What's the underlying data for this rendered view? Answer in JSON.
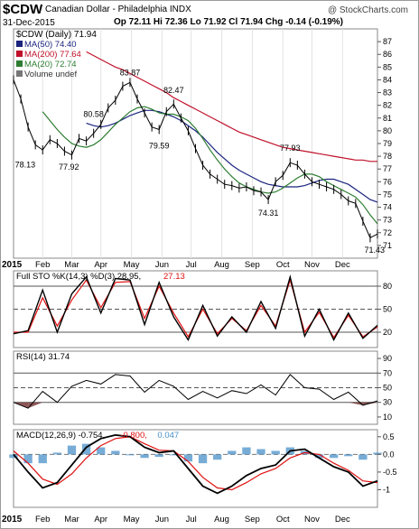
{
  "header": {
    "symbol": "$CDW",
    "name": "Canadian Dollar - Philadelphia INDX",
    "copyright": "@ StockCharts.com",
    "date": "31-Dec-2015",
    "quote": "Op 72.11 Hi 72.36 Lo 71.92 Cl 71.94 Chg -0.14 (-0.19%)",
    "chg_color": "#e00000"
  },
  "colors": {
    "price": "#000000",
    "ma50": "#1a237e",
    "ma200": "#c0102a",
    "ma20": "#2e7d32",
    "stoch_k": "#000000",
    "stoch_d": "#e01010",
    "rsi_fill": "#7a3b3b",
    "macd_hist": "#4a90c8",
    "macd_line": "#000000",
    "macd_signal": "#e01010"
  },
  "chart_data": [
    {
      "type": "line",
      "panel": "price",
      "legend": [
        {
          "label": "$CDW (Daily) 71.94",
          "color": "#000000"
        },
        {
          "label": "MA(50) 74.40",
          "color": "#1a237e"
        },
        {
          "label": "MA(200) 77.64",
          "color": "#c0102a"
        },
        {
          "label": "MA(20) 72.74",
          "color": "#2e7d32"
        },
        {
          "label": "Volume undef",
          "color": "#777777"
        }
      ],
      "ylim": [
        70,
        88
      ],
      "y_ticks": [
        71,
        72,
        73,
        74,
        75,
        76,
        77,
        78,
        79,
        80,
        81,
        82,
        83,
        84,
        85,
        86,
        87
      ],
      "x": [
        0,
        5,
        10,
        15,
        20,
        25,
        30,
        35,
        40,
        45,
        50,
        55,
        60,
        65,
        70,
        75,
        80,
        85,
        90,
        95,
        100,
        105,
        110,
        115,
        120,
        125,
        130,
        135,
        140,
        145,
        150,
        155,
        160,
        165,
        170,
        175,
        180,
        185,
        190,
        195,
        200,
        205,
        210,
        215,
        220,
        225,
        230,
        235,
        240,
        245,
        250
      ],
      "series": [
        {
          "name": "$CDW",
          "values": [
            84.0,
            82.5,
            80.3,
            78.9,
            78.5,
            79.3,
            79.0,
            78.4,
            78.1,
            79.4,
            79.2,
            79.8,
            80.5,
            81.8,
            82.4,
            83.5,
            83.8,
            82.5,
            81.4,
            80.3,
            80.1,
            81.5,
            82.1,
            81.0,
            80.0,
            78.6,
            77.3,
            76.6,
            76.2,
            75.8,
            75.7,
            75.5,
            75.6,
            75.3,
            75.2,
            74.6,
            76.0,
            76.5,
            77.5,
            77.3,
            76.6,
            76.0,
            75.8,
            75.6,
            75.4,
            75.0,
            74.5,
            74.3,
            72.9,
            71.6,
            71.9
          ]
        },
        {
          "name": "MA(50)",
          "values": [
            null,
            null,
            null,
            null,
            null,
            null,
            null,
            null,
            null,
            null,
            80.6,
            80.4,
            80.3,
            80.4,
            80.6,
            80.9,
            81.2,
            81.4,
            81.6,
            81.6,
            81.5,
            81.3,
            81.1,
            80.8,
            80.4,
            80.0,
            79.5,
            78.9,
            78.3,
            77.8,
            77.3,
            76.9,
            76.6,
            76.3,
            76.0,
            75.8,
            75.7,
            75.6,
            75.6,
            75.6,
            75.7,
            75.9,
            76.1,
            76.2,
            76.2,
            76.0,
            75.8,
            75.4,
            75.0,
            74.6,
            74.4
          ]
        },
        {
          "name": "MA(200)",
          "values": [
            null,
            null,
            null,
            null,
            null,
            null,
            null,
            null,
            null,
            null,
            86.2,
            85.9,
            85.6,
            85.3,
            85.0,
            84.8,
            84.5,
            84.2,
            83.9,
            83.6,
            83.3,
            83.0,
            82.6,
            82.3,
            82.0,
            81.7,
            81.4,
            81.1,
            80.8,
            80.5,
            80.2,
            79.9,
            79.7,
            79.5,
            79.3,
            79.1,
            78.9,
            78.7,
            78.6,
            78.5,
            78.4,
            78.3,
            78.2,
            78.1,
            78.0,
            77.9,
            77.8,
            77.7,
            77.7,
            77.6,
            77.6
          ]
        },
        {
          "name": "MA(20)",
          "values": [
            null,
            null,
            null,
            null,
            81.5,
            80.8,
            80.1,
            79.5,
            79.0,
            78.8,
            78.7,
            78.9,
            79.3,
            79.9,
            80.5,
            81.0,
            81.5,
            81.8,
            81.9,
            81.7,
            81.4,
            81.3,
            81.3,
            81.1,
            80.8,
            80.2,
            79.4,
            78.5,
            77.7,
            77.0,
            76.4,
            75.9,
            75.6,
            75.4,
            75.2,
            75.1,
            75.2,
            75.5,
            75.9,
            76.3,
            76.6,
            76.6,
            76.4,
            76.0,
            75.7,
            75.4,
            75.1,
            74.8,
            74.2,
            73.4,
            72.7
          ]
        }
      ],
      "annotations": [
        {
          "label": "78.13",
          "x": 8,
          "y": 78.13
        },
        {
          "label": "77.92",
          "x": 38,
          "y": 77.92
        },
        {
          "label": "80.58",
          "x": 55,
          "y": 80.58
        },
        {
          "label": "83.87",
          "x": 80,
          "y": 83.87
        },
        {
          "label": "79.59",
          "x": 100,
          "y": 79.59
        },
        {
          "label": "82.47",
          "x": 110,
          "y": 82.47
        },
        {
          "label": "77.93",
          "x": 190,
          "y": 77.93
        },
        {
          "label": "74.31",
          "x": 175,
          "y": 74.31
        },
        {
          "label": "71.43",
          "x": 248,
          "y": 71.43
        }
      ]
    },
    {
      "type": "line",
      "panel": "stochastic",
      "legend": [
        {
          "label": "Full STO %K(14,3) %D(3) 28.95,",
          "color": "#000000"
        },
        {
          "label": "27.13",
          "color": "#e01010"
        }
      ],
      "ylim": [
        0,
        100
      ],
      "y_ticks": [
        20,
        50,
        80
      ],
      "x": [
        0,
        10,
        20,
        30,
        40,
        50,
        60,
        70,
        80,
        90,
        100,
        110,
        120,
        130,
        140,
        150,
        160,
        170,
        180,
        190,
        200,
        210,
        220,
        230,
        240,
        250
      ],
      "series": [
        {
          "name": "%K",
          "values": [
            18,
            22,
            75,
            20,
            70,
            92,
            45,
            90,
            88,
            30,
            85,
            40,
            10,
            55,
            15,
            40,
            20,
            60,
            25,
            92,
            15,
            50,
            10,
            45,
            12,
            29
          ]
        },
        {
          "name": "%D",
          "values": [
            20,
            20,
            65,
            28,
            62,
            88,
            52,
            85,
            86,
            38,
            80,
            45,
            14,
            50,
            18,
            38,
            22,
            55,
            28,
            88,
            20,
            46,
            13,
            42,
            14,
            27
          ]
        }
      ]
    },
    {
      "type": "line",
      "panel": "rsi",
      "legend": [
        {
          "label": "RSI(14) 31.74",
          "color": "#000000"
        }
      ],
      "ylim": [
        0,
        100
      ],
      "y_ticks": [
        10,
        30,
        50,
        70,
        90
      ],
      "x": [
        0,
        10,
        20,
        30,
        40,
        50,
        60,
        70,
        80,
        90,
        100,
        110,
        120,
        130,
        140,
        150,
        160,
        170,
        180,
        190,
        200,
        210,
        220,
        230,
        240,
        250
      ],
      "series": [
        {
          "name": "RSI(14)",
          "values": [
            30,
            22,
            45,
            30,
            52,
            60,
            55,
            68,
            66,
            44,
            60,
            52,
            34,
            45,
            36,
            46,
            42,
            54,
            40,
            68,
            50,
            48,
            34,
            44,
            26,
            32
          ]
        }
      ]
    },
    {
      "type": "line",
      "panel": "macd",
      "legend": [
        {
          "label": "MACD(12,26,9) -0.754,",
          "color": "#000000"
        },
        {
          "label": "-0.800,",
          "color": "#e01010"
        },
        {
          "label": "0.047",
          "color": "#4a90c8"
        }
      ],
      "ylim": [
        -1.5,
        0.7
      ],
      "y_ticks": [
        -1.0,
        -0.5,
        0.0,
        0.5
      ],
      "x": [
        0,
        10,
        20,
        30,
        40,
        50,
        60,
        70,
        80,
        90,
        100,
        110,
        120,
        130,
        140,
        150,
        160,
        170,
        180,
        190,
        200,
        210,
        220,
        230,
        240,
        250
      ],
      "series": [
        {
          "name": "MACD",
          "values": [
            0.0,
            -0.5,
            -0.95,
            -0.8,
            -0.3,
            0.2,
            0.45,
            0.55,
            0.5,
            0.2,
            0.05,
            0.1,
            -0.4,
            -0.9,
            -1.1,
            -0.9,
            -0.6,
            -0.4,
            -0.3,
            0.1,
            0.15,
            -0.1,
            -0.35,
            -0.5,
            -0.9,
            -0.75
          ]
        },
        {
          "name": "Signal",
          "values": [
            0.1,
            -0.25,
            -0.7,
            -0.85,
            -0.55,
            -0.1,
            0.25,
            0.45,
            0.5,
            0.3,
            0.12,
            0.1,
            -0.2,
            -0.65,
            -0.95,
            -1.0,
            -0.8,
            -0.55,
            -0.4,
            -0.1,
            0.05,
            0.0,
            -0.25,
            -0.45,
            -0.75,
            -0.8
          ]
        },
        {
          "name": "Histogram",
          "values": [
            -0.1,
            -0.25,
            -0.25,
            0.05,
            0.25,
            0.3,
            0.2,
            0.1,
            0.0,
            -0.1,
            -0.07,
            0.0,
            -0.2,
            -0.25,
            -0.15,
            0.1,
            0.2,
            0.15,
            0.1,
            0.2,
            0.1,
            -0.1,
            -0.1,
            -0.05,
            -0.15,
            0.05
          ]
        }
      ]
    }
  ],
  "x_axis": {
    "year_label": "2015",
    "months": [
      "Feb",
      "Mar",
      "Apr",
      "May",
      "Jun",
      "Jul",
      "Aug",
      "Sep",
      "Oct",
      "Nov",
      "Dec"
    ],
    "month_x": [
      20,
      40,
      60,
      81,
      102,
      122,
      143,
      164,
      185,
      205,
      226
    ]
  }
}
